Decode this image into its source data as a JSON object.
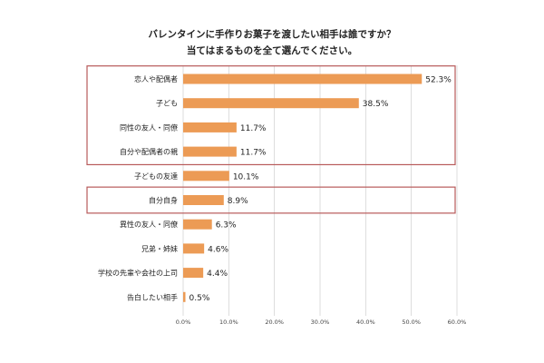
{
  "chart_data": {
    "type": "bar",
    "orientation": "horizontal",
    "title_lines": [
      "バレンタインに手作りお菓子を渡したい相手は誰ですか？",
      "当てはまるものを全て選んでください。"
    ],
    "categories": [
      "恋人や配偶者",
      "子ども",
      "同性の友人・同僚",
      "自分や配偶者の親",
      "子どもの友達",
      "自分自身",
      "異性の友人・同僚",
      "兄弟・姉妹",
      "学校の先輩や会社の上司",
      "告白したい相手"
    ],
    "values": [
      52.3,
      38.5,
      11.7,
      11.7,
      10.1,
      8.9,
      6.3,
      4.6,
      4.4,
      0.5
    ],
    "value_labels": [
      "52.3%",
      "38.5%",
      "11.7%",
      "11.7%",
      "10.1%",
      "8.9%",
      "6.3%",
      "4.6%",
      "4.4%",
      "0.5%"
    ],
    "xlim": [
      0,
      60
    ],
    "x_ticks": [
      "0.0%",
      "10.0%",
      "20.0%",
      "30.0%",
      "40.0%",
      "50.0%",
      "60.0%"
    ],
    "grid": "vertical",
    "highlight_groups": [
      [
        0,
        3
      ],
      [
        5,
        5
      ]
    ],
    "colors": {
      "bar": "#ec9b55",
      "grid": "#cfcfcf",
      "highlight_border": "#b85a5a",
      "text": "#222222"
    }
  }
}
